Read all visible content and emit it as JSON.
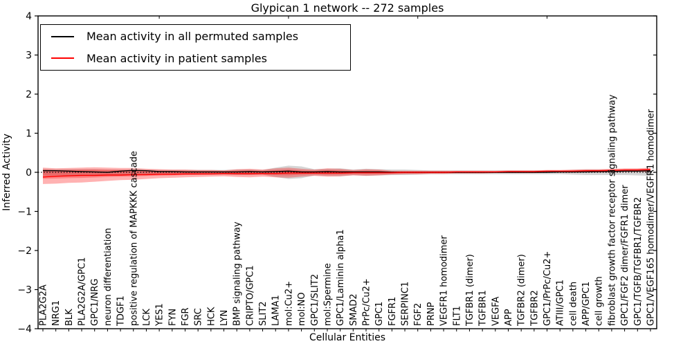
{
  "chart_data": {
    "type": "line",
    "title": "Glypican 1 network -- 272 samples",
    "xlabel": "Cellular Entities",
    "ylabel": "Inferred Activity",
    "ylim": [
      -4,
      4
    ],
    "ytick_labels": [
      "4",
      "3",
      "2",
      "1",
      "0",
      "−1",
      "−2",
      "−3",
      "−4"
    ],
    "ytick_values": [
      4,
      3,
      2,
      1,
      0,
      -1,
      -2,
      -3,
      -4
    ],
    "grid": false,
    "legend_position": "upper left",
    "zero_line": {
      "style": "dotted",
      "color": "#000000",
      "y": 0
    },
    "categories": [
      "PLA2G2A",
      "NRG1",
      "BLK",
      "PLA2G2A/GPC1",
      "GPC1/NRG",
      "neuron differentiation",
      "TDGF1",
      "positive regulation of MAPKKK cascade",
      "LCK",
      "YES1",
      "FYN",
      "FGR",
      "SRC",
      "HCK",
      "LYN",
      "BMP signaling pathway",
      "CRIPTO/GPC1",
      "SLIT2",
      "LAMA1",
      "mol:Cu2+",
      "mol:NO",
      "GPC1/SLIT2",
      "mol:Spermine",
      "GPC1/Laminin alpha1",
      "SMAD2",
      "PrPc/Cu2+",
      "GPC1",
      "FGFR1",
      "SERPINC1",
      "FGF2",
      "PRNP",
      "VEGFR1 homodimer",
      "FLT1",
      "TGFBR1 (dimer)",
      "TGFBR1",
      "VEGFA",
      "APP",
      "TGFBR2 (dimer)",
      "TGFBR2",
      "GPC1/PrPc/Cu2+",
      "ATIII/GPC1",
      "cell death",
      "APP/GPC1",
      "cell growth",
      "fibroblast growth factor receptor signaling pathway",
      "GPC1/FGF2 dimer/FGFR1 dimer",
      "GPC1/TGFB/TGFBR1/TGFBR2",
      "GPC1/VEGF165 homodimer/VEGFR1 homodimer"
    ],
    "series": [
      {
        "name": "Mean activity in all permuted samples",
        "color": "#000000",
        "values": [
          0.04,
          0.04,
          0.03,
          0.02,
          0.01,
          0.0,
          0.03,
          0.05,
          0.04,
          0.02,
          0.02,
          0.01,
          0.01,
          0.01,
          0.01,
          0.01,
          0.02,
          0.01,
          0.02,
          0.03,
          0.01,
          0.01,
          0.02,
          0.01,
          0.01,
          0.01,
          0.01,
          0.0,
          0.0,
          0.0,
          0.0,
          0.0,
          0.0,
          0.0,
          0.0,
          0.0,
          0.0,
          0.0,
          0.0,
          0.0,
          0.01,
          0.01,
          0.01,
          0.02,
          0.02,
          0.03,
          0.03,
          0.04
        ]
      },
      {
        "name": "Mean activity in patient samples",
        "color": "#ff0000",
        "values": [
          -0.12,
          -0.1,
          -0.09,
          -0.08,
          -0.08,
          -0.07,
          -0.07,
          -0.06,
          -0.06,
          -0.05,
          -0.05,
          -0.04,
          -0.04,
          -0.04,
          -0.03,
          -0.03,
          -0.03,
          -0.03,
          -0.03,
          -0.02,
          -0.02,
          -0.02,
          -0.02,
          -0.02,
          -0.01,
          -0.01,
          -0.01,
          -0.01,
          0.0,
          0.0,
          0.0,
          0.0,
          0.01,
          0.01,
          0.01,
          0.01,
          0.02,
          0.02,
          0.02,
          0.03,
          0.03,
          0.03,
          0.04,
          0.04,
          0.05,
          0.06,
          0.06,
          0.07
        ]
      }
    ],
    "bands": [
      {
        "name": "permuted samples spread",
        "color": "#888888",
        "opacity": 0.35,
        "upper": [
          0.09,
          0.08,
          0.08,
          0.08,
          0.08,
          0.07,
          0.07,
          0.07,
          0.07,
          0.06,
          0.06,
          0.06,
          0.06,
          0.06,
          0.06,
          0.07,
          0.07,
          0.06,
          0.12,
          0.17,
          0.15,
          0.08,
          0.09,
          0.1,
          0.07,
          0.09,
          0.08,
          0.07,
          0.07,
          0.06,
          0.05,
          0.05,
          0.05,
          0.05,
          0.05,
          0.05,
          0.05,
          0.05,
          0.05,
          0.05,
          0.05,
          0.06,
          0.07,
          0.07,
          0.07,
          0.07,
          0.08,
          0.09
        ],
        "lower": [
          -0.09,
          -0.08,
          -0.08,
          -0.08,
          -0.08,
          -0.07,
          -0.07,
          -0.07,
          -0.07,
          -0.06,
          -0.06,
          -0.06,
          -0.06,
          -0.06,
          -0.06,
          -0.07,
          -0.07,
          -0.06,
          -0.12,
          -0.17,
          -0.15,
          -0.08,
          -0.09,
          -0.1,
          -0.07,
          -0.09,
          -0.08,
          -0.07,
          -0.07,
          -0.06,
          -0.05,
          -0.05,
          -0.05,
          -0.05,
          -0.05,
          -0.05,
          -0.05,
          -0.05,
          -0.05,
          -0.05,
          -0.05,
          -0.06,
          -0.07,
          -0.07,
          -0.07,
          -0.07,
          -0.08,
          -0.09
        ]
      },
      {
        "name": "patient samples spread",
        "color": "#ff0000",
        "opacity": 0.3,
        "upper": [
          0.12,
          0.1,
          0.11,
          0.12,
          0.13,
          0.12,
          0.11,
          0.11,
          0.09,
          0.08,
          0.07,
          0.07,
          0.06,
          0.06,
          0.05,
          0.08,
          0.09,
          0.07,
          0.1,
          0.12,
          0.09,
          0.07,
          0.1,
          0.09,
          0.06,
          0.08,
          0.07,
          0.04,
          0.04,
          0.04,
          0.04,
          0.04,
          0.04,
          0.04,
          0.04,
          0.04,
          0.05,
          0.05,
          0.05,
          0.06,
          0.06,
          0.07,
          0.08,
          0.08,
          0.09,
          0.1,
          0.1,
          0.12
        ],
        "lower": [
          -0.3,
          -0.29,
          -0.27,
          -0.26,
          -0.24,
          -0.22,
          -0.2,
          -0.19,
          -0.17,
          -0.15,
          -0.14,
          -0.13,
          -0.12,
          -0.11,
          -0.1,
          -0.12,
          -0.13,
          -0.11,
          -0.13,
          -0.14,
          -0.11,
          -0.09,
          -0.11,
          -0.1,
          -0.08,
          -0.09,
          -0.08,
          -0.06,
          -0.05,
          -0.05,
          -0.04,
          -0.04,
          -0.03,
          -0.03,
          -0.03,
          -0.02,
          -0.02,
          -0.02,
          -0.02,
          -0.01,
          -0.01,
          -0.01,
          0.0,
          0.0,
          0.01,
          0.02,
          0.02,
          0.02
        ]
      }
    ]
  }
}
